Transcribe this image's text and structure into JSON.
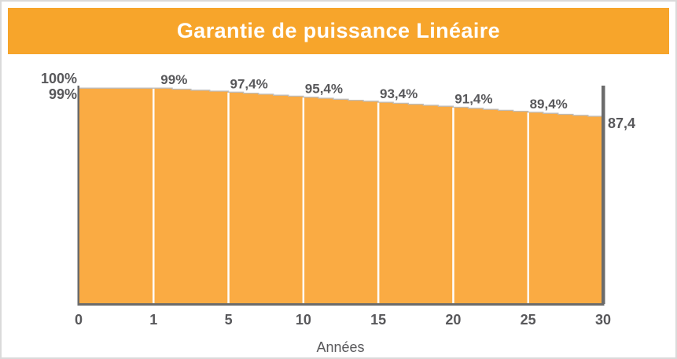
{
  "header": {
    "title": "Garantie de puissance Linéaire"
  },
  "chart_data": {
    "type": "area",
    "title": "Garantie de puissance Linéaire",
    "xlabel": "Années",
    "ylabel": "",
    "x_ticks": [
      0,
      1,
      5,
      10,
      15,
      20,
      25,
      30
    ],
    "x_tick_labels": [
      "0",
      "1",
      "5",
      "10",
      "15",
      "20",
      "25",
      "30"
    ],
    "y_axis_labels": [
      "100%",
      "99%"
    ],
    "years": [
      0,
      1,
      2,
      3,
      4,
      5,
      6,
      7,
      8,
      9,
      10,
      11,
      12,
      13,
      14,
      15,
      16,
      17,
      18,
      19,
      20,
      21,
      22,
      23,
      24,
      25,
      26,
      27,
      28,
      29,
      30
    ],
    "values": [
      99,
      99,
      98.6,
      98.2,
      97.8,
      97.4,
      97,
      96.6,
      96.2,
      95.8,
      95.4,
      95,
      94.6,
      94.2,
      93.8,
      93.4,
      93,
      92.6,
      92.2,
      91.8,
      91.4,
      91,
      90.6,
      90.2,
      89.8,
      89.4,
      89,
      88.6,
      88.2,
      87.8,
      87.4
    ],
    "data_labels": [
      {
        "x": 1,
        "label": "99%"
      },
      {
        "x": 5,
        "label": "97,4%"
      },
      {
        "x": 10,
        "label": "95,4%"
      },
      {
        "x": 15,
        "label": "93,4%"
      },
      {
        "x": 20,
        "label": "91,4%"
      },
      {
        "x": 25,
        "label": "89,4%"
      }
    ],
    "end_label": "87,4",
    "grid": "off",
    "legend": "none",
    "colors": {
      "header_bg": "#F7A52B",
      "header_text": "#FFFFFF",
      "area": "#FAAB43",
      "area_edge": "#BDBDBD",
      "axis": "#6B6B6B",
      "x_axis_line": "#6B6B6B",
      "separator": "#FFFFFF",
      "text": "#58585B"
    }
  }
}
